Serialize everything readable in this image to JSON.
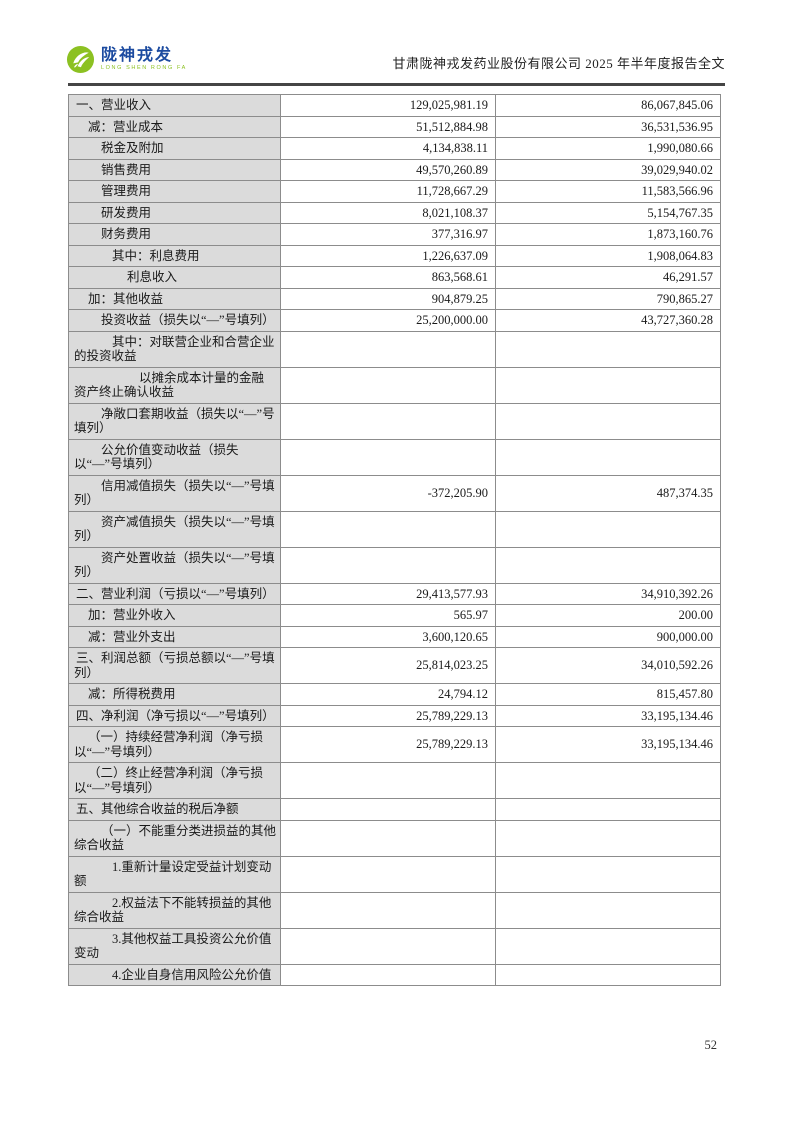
{
  "header": {
    "brand_cn": "陇神戎发",
    "brand_en": "LONG SHEN RONG FA",
    "report_title": "甘肃陇神戎发药业股份有限公司 2025 年半年度报告全文"
  },
  "footer": {
    "page_number": "52"
  },
  "colors": {
    "label_cell_bg": "#dbdbdb",
    "table_border": "#8c8c8c",
    "logo_green": "#8cc122",
    "brand_blue": "#1c4ba0",
    "header_rule": "#454545"
  },
  "income_statement": {
    "rows": [
      {
        "label": "一、营业收入",
        "current": "129,025,981.19",
        "prior": "86,067,845.06",
        "indent": 0
      },
      {
        "label": "减：营业成本",
        "current": "51,512,884.98",
        "prior": "36,531,536.95",
        "indent": 1
      },
      {
        "label": "税金及附加",
        "current": "4,134,838.11",
        "prior": "1,990,080.66",
        "indent": 2
      },
      {
        "label": "销售费用",
        "current": "49,570,260.89",
        "prior": "39,029,940.02",
        "indent": 2
      },
      {
        "label": "管理费用",
        "current": "11,728,667.29",
        "prior": "11,583,566.96",
        "indent": 2
      },
      {
        "label": "研发费用",
        "current": "8,021,108.37",
        "prior": "5,154,767.35",
        "indent": 2
      },
      {
        "label": "财务费用",
        "current": "377,316.97",
        "prior": "1,873,160.76",
        "indent": 2
      },
      {
        "label": "其中：利息费用",
        "current": "1,226,637.09",
        "prior": "1,908,064.83",
        "indent": 3
      },
      {
        "label": "利息收入",
        "current": "863,568.61",
        "prior": "46,291.57",
        "indent": 4
      },
      {
        "label": "加：其他收益",
        "current": "904,879.25",
        "prior": "790,865.27",
        "indent": 1
      },
      {
        "label": "投资收益（损失以“—”号填列）",
        "current": "25,200,000.00",
        "prior": "43,727,360.28",
        "indent": 2
      },
      {
        "label": "其中：对联营企业和合营企业的投资收益",
        "current": "",
        "prior": "",
        "indent": 3
      },
      {
        "label": "以摊余成本计量的金融资产终止确认收益",
        "current": "",
        "prior": "",
        "indent": 5
      },
      {
        "label": "净敞口套期收益（损失以“—”号填列）",
        "current": "",
        "prior": "",
        "indent": 2
      },
      {
        "label": "公允价值变动收益（损失以“—”号填列）",
        "current": "",
        "prior": "",
        "indent": 2
      },
      {
        "label": "信用减值损失（损失以“—”号填列）",
        "current": "-372,205.90",
        "prior": "487,374.35",
        "indent": 2
      },
      {
        "label": "资产减值损失（损失以“—”号填列）",
        "current": "",
        "prior": "",
        "indent": 2
      },
      {
        "label": "资产处置收益（损失以“—”号填列）",
        "current": "",
        "prior": "",
        "indent": 2
      },
      {
        "label": "二、营业利润（亏损以“—”号填列）",
        "current": "29,413,577.93",
        "prior": "34,910,392.26",
        "indent": 0
      },
      {
        "label": "加：营业外收入",
        "current": "565.97",
        "prior": "200.00",
        "indent": 1
      },
      {
        "label": "减：营业外支出",
        "current": "3,600,120.65",
        "prior": "900,000.00",
        "indent": 1
      },
      {
        "label": "三、利润总额（亏损总额以“—”号填列）",
        "current": "25,814,023.25",
        "prior": "34,010,592.26",
        "indent": 0
      },
      {
        "label": "减：所得税费用",
        "current": "24,794.12",
        "prior": "815,457.80",
        "indent": 1
      },
      {
        "label": "四、净利润（净亏损以“—”号填列）",
        "current": "25,789,229.13",
        "prior": "33,195,134.46",
        "indent": 0
      },
      {
        "label": "（一）持续经营净利润（净亏损以“—”号填列）",
        "current": "25,789,229.13",
        "prior": "33,195,134.46",
        "indent": 1
      },
      {
        "label": "（二）终止经营净利润（净亏损以“—”号填列）",
        "current": "",
        "prior": "",
        "indent": 1
      },
      {
        "label": "五、其他综合收益的税后净额",
        "current": "",
        "prior": "",
        "indent": 0
      },
      {
        "label": "（一）不能重分类进损益的其他综合收益",
        "current": "",
        "prior": "",
        "indent": 2
      },
      {
        "label": "1.重新计量设定受益计划变动额",
        "current": "",
        "prior": "",
        "indent": 3
      },
      {
        "label": "2.权益法下不能转损益的其他综合收益",
        "current": "",
        "prior": "",
        "indent": 3
      },
      {
        "label": "3.其他权益工具投资公允价值变动",
        "current": "",
        "prior": "",
        "indent": 3
      },
      {
        "label": "4.企业自身信用风险公允价值",
        "current": "",
        "prior": "",
        "indent": 3
      }
    ]
  }
}
